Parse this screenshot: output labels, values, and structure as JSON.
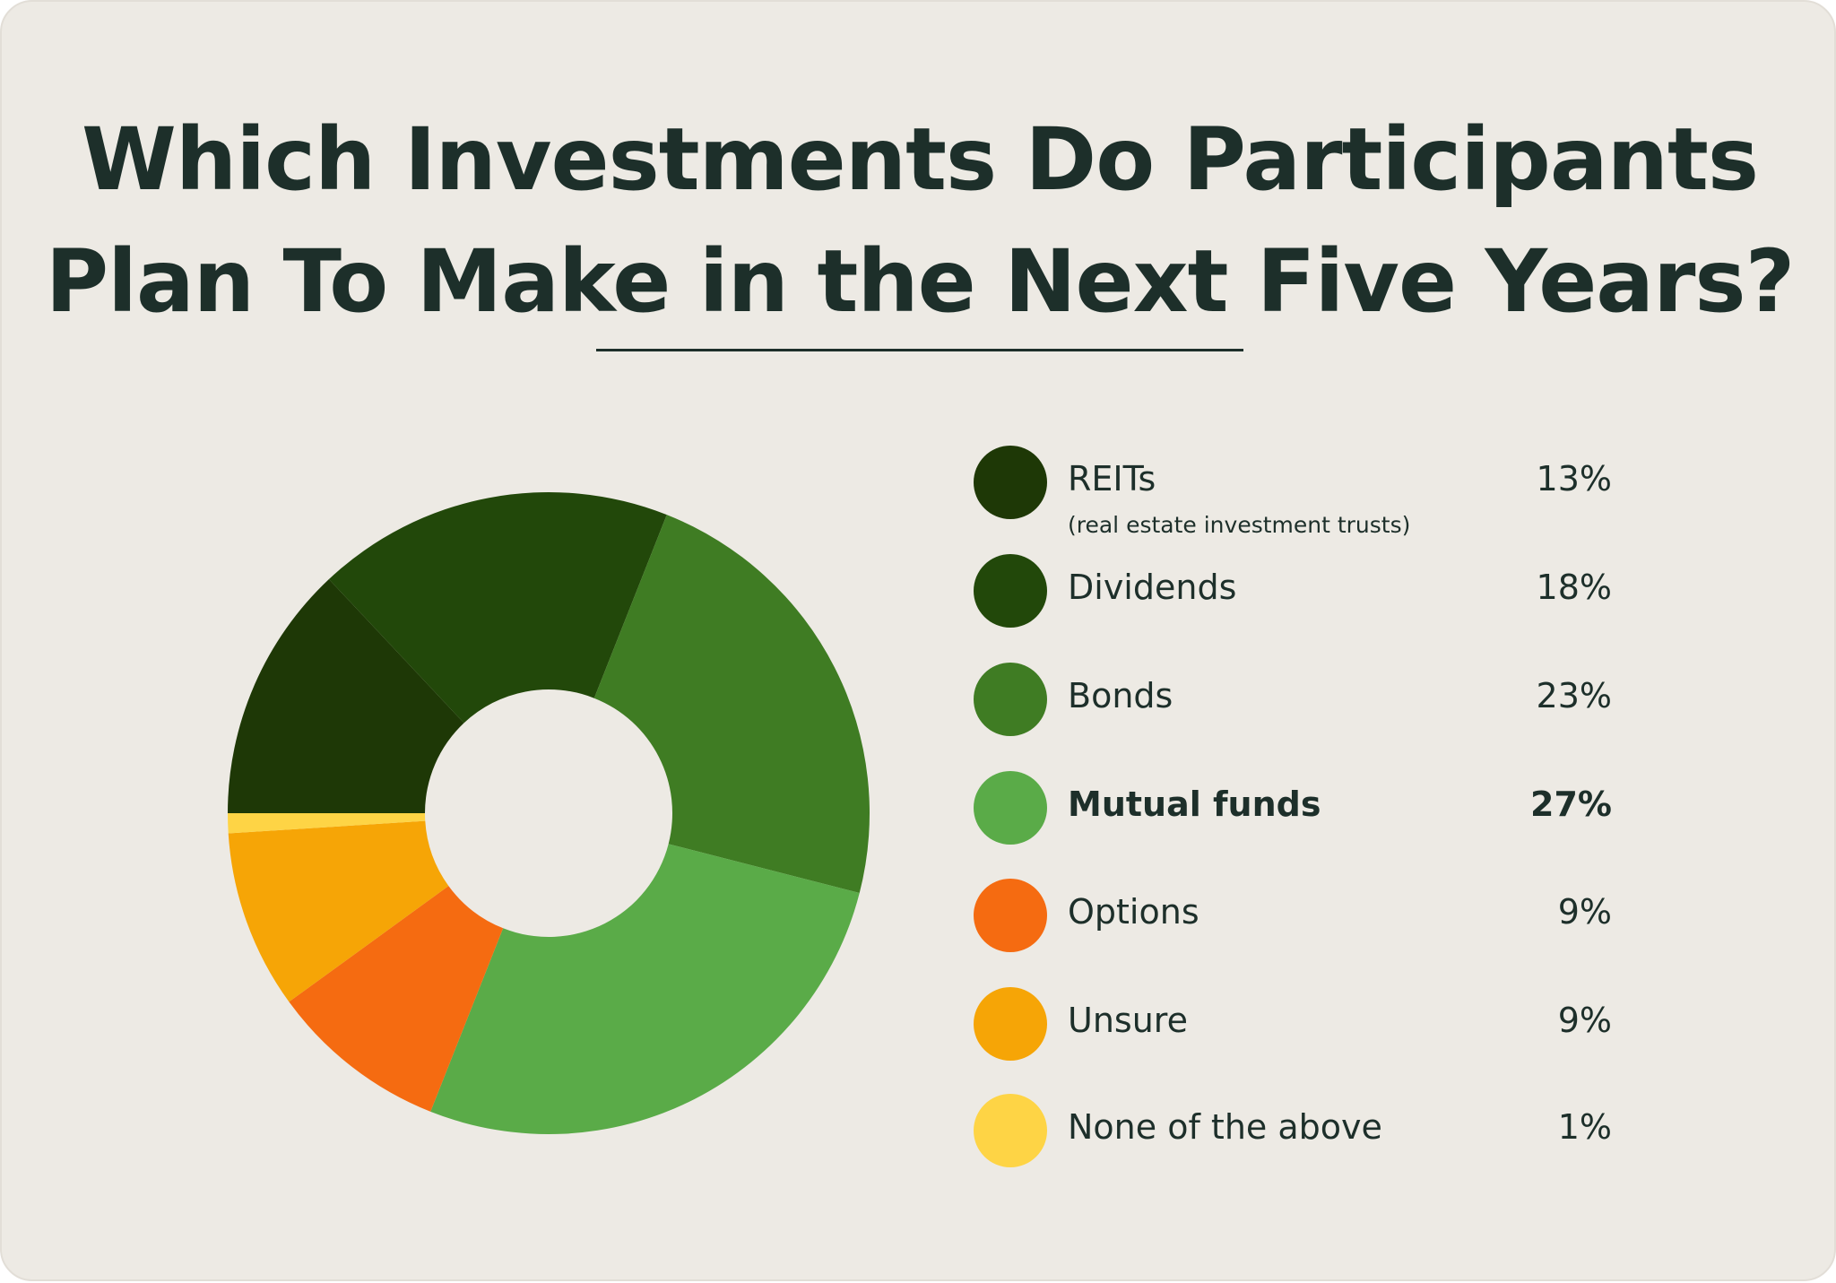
{
  "chart_data": {
    "type": "pie",
    "title_lines": [
      "Which Investments Do Participants",
      "Plan To Make in the Next Five Years?"
    ],
    "slices": [
      {
        "label": "REITs",
        "sublabel": "(real estate investment trusts)",
        "value": 13,
        "display": "13%",
        "color": "#1e3806",
        "highlight": false
      },
      {
        "label": "Dividends",
        "sublabel": "",
        "value": 18,
        "display": "18%",
        "color": "#22480a",
        "highlight": false
      },
      {
        "label": "Bonds",
        "sublabel": "",
        "value": 23,
        "display": "23%",
        "color": "#3f7c23",
        "highlight": false
      },
      {
        "label": "Mutual funds",
        "sublabel": "",
        "value": 27,
        "display": "27%",
        "color": "#5aab48",
        "highlight": true
      },
      {
        "label": "Options",
        "sublabel": "",
        "value": 9,
        "display": "9%",
        "color": "#f56b11",
        "highlight": false
      },
      {
        "label": "Unsure",
        "sublabel": "",
        "value": 9,
        "display": "9%",
        "color": "#f6a506",
        "highlight": false
      },
      {
        "label": "None of the above",
        "sublabel": "",
        "value": 1,
        "display": "1%",
        "color": "#fed445",
        "highlight": false
      }
    ],
    "unit": "%",
    "legend_position": "right"
  },
  "colors": {
    "background": "#edeae4",
    "text": "#1d2f2a"
  }
}
